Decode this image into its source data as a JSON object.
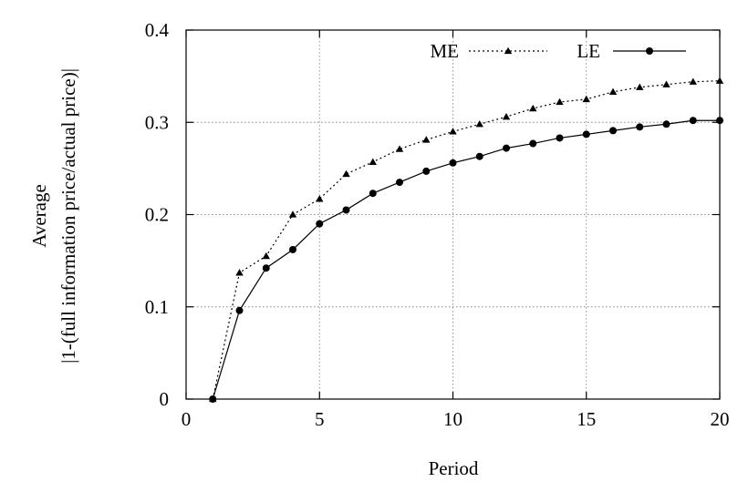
{
  "chart_data": {
    "type": "line",
    "xlabel": "Period",
    "ylabel_lines": [
      "Average",
      "|1-(full information price/actual price)|"
    ],
    "xlim": [
      0,
      20
    ],
    "ylim": [
      0,
      0.4
    ],
    "xticks": [
      0,
      5,
      10,
      15,
      20
    ],
    "yticks": [
      0,
      0.1,
      0.2,
      0.3,
      0.4
    ],
    "xtick_labels": [
      "0",
      "5",
      "10",
      "15",
      "20"
    ],
    "ytick_labels": [
      "0",
      "0.1",
      "0.2",
      "0.3",
      "0.4"
    ],
    "grid": true,
    "legend_position": "top-right",
    "x": [
      1,
      2,
      3,
      4,
      5,
      6,
      7,
      8,
      9,
      10,
      11,
      12,
      13,
      14,
      15,
      16,
      17,
      18,
      19,
      20
    ],
    "series": [
      {
        "name": "ME",
        "line_style": "dotted",
        "marker": "triangle",
        "values": [
          0.0,
          0.137,
          0.155,
          0.2,
          0.217,
          0.244,
          0.257,
          0.271,
          0.281,
          0.29,
          0.298,
          0.306,
          0.315,
          0.322,
          0.325,
          0.333,
          0.338,
          0.341,
          0.344,
          0.345
        ]
      },
      {
        "name": "LE",
        "line_style": "solid",
        "marker": "circle",
        "values": [
          0.0,
          0.096,
          0.142,
          0.162,
          0.19,
          0.205,
          0.223,
          0.235,
          0.247,
          0.256,
          0.263,
          0.272,
          0.277,
          0.283,
          0.287,
          0.291,
          0.295,
          0.298,
          0.302,
          0.302
        ]
      }
    ]
  }
}
